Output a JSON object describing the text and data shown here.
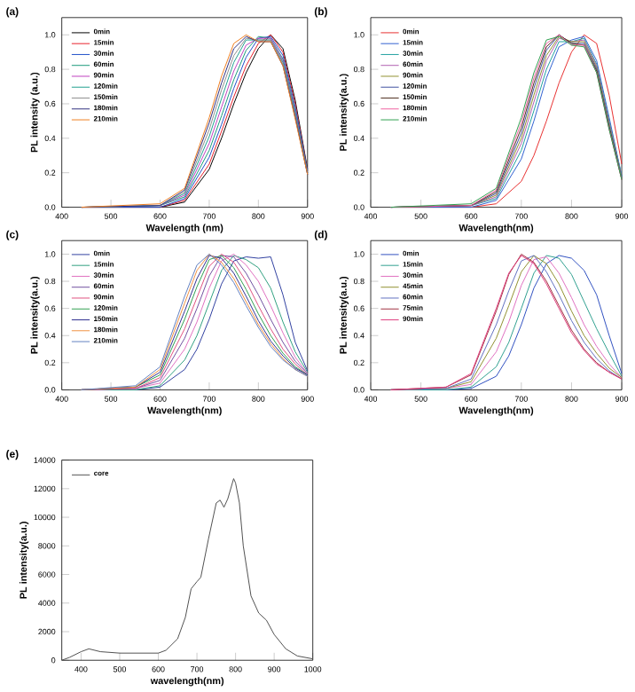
{
  "chart_data": [
    {
      "type": "line",
      "annotations": [
        "(a)"
      ],
      "xlabel": "Wavelength (nm)",
      "ylabel": "PL intensity (a.u.)",
      "legend": "top left",
      "xlim": [
        400,
        900
      ],
      "ylim": [
        0,
        1.1
      ],
      "xticks": [
        400,
        500,
        600,
        700,
        800,
        900
      ],
      "yticks": [
        {
          "value": 0,
          "label": "0.0"
        },
        {
          "value": 0.2,
          "label": "0.2"
        },
        {
          "value": 0.4,
          "label": "0.4"
        },
        {
          "value": 0.6,
          "label": "0.6"
        },
        {
          "value": 0.8,
          "label": "0.8"
        },
        {
          "value": 1.0,
          "label": "1.0"
        }
      ],
      "x": [
        440,
        600,
        650,
        700,
        725,
        750,
        775,
        800,
        825,
        850,
        875,
        900
      ],
      "series": [
        {
          "name": "0min",
          "color": "#000000",
          "values": [
            0,
            0,
            0.03,
            0.22,
            0.4,
            0.6,
            0.78,
            0.92,
            1.0,
            0.92,
            0.62,
            0.22
          ]
        },
        {
          "name": "15min",
          "color": "#e8202a",
          "values": [
            0,
            0,
            0.04,
            0.25,
            0.44,
            0.64,
            0.82,
            0.95,
            1.0,
            0.9,
            0.6,
            0.21
          ]
        },
        {
          "name": "30min",
          "color": "#1f4fc8",
          "values": [
            0,
            0,
            0.05,
            0.29,
            0.48,
            0.69,
            0.87,
            0.98,
            0.99,
            0.88,
            0.58,
            0.21
          ]
        },
        {
          "name": "60min",
          "color": "#1a9a7a",
          "values": [
            0,
            0.01,
            0.06,
            0.33,
            0.53,
            0.74,
            0.91,
            0.99,
            0.98,
            0.86,
            0.56,
            0.2
          ]
        },
        {
          "name": "90min",
          "color": "#c040c0",
          "values": [
            0,
            0.01,
            0.07,
            0.37,
            0.58,
            0.79,
            0.94,
            0.98,
            0.98,
            0.85,
            0.55,
            0.2
          ]
        },
        {
          "name": "120min",
          "color": "#20a090",
          "values": [
            0,
            0.01,
            0.08,
            0.41,
            0.63,
            0.84,
            0.97,
            0.97,
            0.97,
            0.84,
            0.54,
            0.2
          ]
        },
        {
          "name": "150min",
          "color": "#909090",
          "values": [
            0,
            0.01,
            0.09,
            0.45,
            0.68,
            0.88,
            0.98,
            0.97,
            0.97,
            0.83,
            0.53,
            0.19
          ]
        },
        {
          "name": "180min",
          "color": "#303080",
          "values": [
            0,
            0.01,
            0.1,
            0.49,
            0.72,
            0.92,
            0.99,
            0.96,
            0.96,
            0.82,
            0.52,
            0.19
          ]
        },
        {
          "name": "210min",
          "color": "#f08020",
          "values": [
            0,
            0.02,
            0.11,
            0.52,
            0.76,
            0.95,
            1.0,
            0.96,
            0.96,
            0.82,
            0.51,
            0.19
          ]
        }
      ]
    },
    {
      "type": "line",
      "annotations": [
        "(b)"
      ],
      "xlabel": "Wavelength(nm)",
      "ylabel": "PL intensity(a.u.)",
      "legend": "top left",
      "xlim": [
        400,
        900
      ],
      "ylim": [
        0,
        1.1
      ],
      "xticks": [
        400,
        500,
        600,
        700,
        800,
        900
      ],
      "yticks": [
        {
          "value": 0,
          "label": "0.0"
        },
        {
          "value": 0.2,
          "label": "0.2"
        },
        {
          "value": 0.4,
          "label": "0.4"
        },
        {
          "value": 0.6,
          "label": "0.6"
        },
        {
          "value": 0.8,
          "label": "0.8"
        },
        {
          "value": 1.0,
          "label": "1.0"
        }
      ],
      "x": [
        440,
        600,
        650,
        700,
        725,
        750,
        775,
        800,
        825,
        850,
        875,
        900
      ],
      "series": [
        {
          "name": "0min",
          "color": "#e83030",
          "values": [
            0,
            0,
            0.02,
            0.15,
            0.3,
            0.5,
            0.72,
            0.9,
            1.0,
            0.95,
            0.65,
            0.25
          ]
        },
        {
          "name": "15min",
          "color": "#3060d0",
          "values": [
            0,
            0,
            0.04,
            0.28,
            0.5,
            0.75,
            0.93,
            0.97,
            0.99,
            0.85,
            0.52,
            0.18
          ]
        },
        {
          "name": "30min",
          "color": "#20a0a0",
          "values": [
            0,
            0.01,
            0.05,
            0.33,
            0.56,
            0.8,
            0.96,
            0.96,
            0.98,
            0.83,
            0.5,
            0.18
          ]
        },
        {
          "name": "60min",
          "color": "#b060b0",
          "values": [
            0,
            0.01,
            0.06,
            0.37,
            0.61,
            0.85,
            0.98,
            0.96,
            0.97,
            0.82,
            0.49,
            0.17
          ]
        },
        {
          "name": "90min",
          "color": "#909030",
          "values": [
            0,
            0.01,
            0.07,
            0.4,
            0.65,
            0.88,
            0.99,
            0.96,
            0.96,
            0.81,
            0.48,
            0.17
          ]
        },
        {
          "name": "120min",
          "color": "#4050a0",
          "values": [
            0,
            0.01,
            0.08,
            0.43,
            0.69,
            0.91,
            1.0,
            0.95,
            0.95,
            0.8,
            0.47,
            0.17
          ]
        },
        {
          "name": "150min",
          "color": "#503020",
          "values": [
            0,
            0.01,
            0.09,
            0.46,
            0.72,
            0.93,
            1.0,
            0.95,
            0.94,
            0.79,
            0.46,
            0.16
          ]
        },
        {
          "name": "180min",
          "color": "#f060a0",
          "values": [
            0,
            0.01,
            0.1,
            0.49,
            0.75,
            0.95,
            1.0,
            0.94,
            0.94,
            0.78,
            0.45,
            0.16
          ]
        },
        {
          "name": "210min",
          "color": "#30a050",
          "values": [
            0,
            0.02,
            0.11,
            0.52,
            0.78,
            0.97,
            0.99,
            0.94,
            0.93,
            0.78,
            0.45,
            0.16
          ]
        }
      ]
    },
    {
      "type": "line",
      "annotations": [
        "(c)"
      ],
      "xlabel": "Wavelength(nm)",
      "ylabel": "PL intensity(a.u.)",
      "legend": "top left",
      "xlim": [
        400,
        900
      ],
      "ylim": [
        0,
        1.1
      ],
      "xticks": [
        400,
        500,
        600,
        700,
        800,
        900
      ],
      "yticks": [
        {
          "value": 0,
          "label": "0.0"
        },
        {
          "value": 0.2,
          "label": "0.2"
        },
        {
          "value": 0.4,
          "label": "0.4"
        },
        {
          "value": 0.6,
          "label": "0.6"
        },
        {
          "value": 0.8,
          "label": "0.8"
        },
        {
          "value": 1.0,
          "label": "1.0"
        }
      ],
      "x": [
        440,
        550,
        600,
        650,
        675,
        700,
        725,
        750,
        775,
        800,
        825,
        850,
        875,
        900
      ],
      "series": [
        {
          "name": "0min",
          "color": "#3040a0",
          "values": [
            0,
            0,
            0.02,
            0.15,
            0.3,
            0.52,
            0.78,
            0.95,
            0.98,
            0.97,
            0.98,
            0.7,
            0.35,
            0.14
          ]
        },
        {
          "name": "15min",
          "color": "#30a080",
          "values": [
            0,
            0,
            0.03,
            0.22,
            0.4,
            0.64,
            0.88,
            0.99,
            0.96,
            0.9,
            0.75,
            0.5,
            0.28,
            0.13
          ]
        },
        {
          "name": "30min",
          "color": "#e070c0",
          "values": [
            0,
            0.01,
            0.05,
            0.3,
            0.5,
            0.75,
            0.95,
            1.0,
            0.92,
            0.8,
            0.62,
            0.42,
            0.24,
            0.12
          ]
        },
        {
          "name": "60min",
          "color": "#7050a0",
          "values": [
            0,
            0.01,
            0.07,
            0.38,
            0.6,
            0.84,
            0.99,
            0.98,
            0.86,
            0.7,
            0.52,
            0.35,
            0.21,
            0.12
          ]
        },
        {
          "name": "90min",
          "color": "#e05080",
          "values": [
            0,
            0.01,
            0.09,
            0.45,
            0.68,
            0.91,
            1.0,
            0.94,
            0.8,
            0.62,
            0.45,
            0.3,
            0.19,
            0.11
          ]
        },
        {
          "name": "120min",
          "color": "#30a050",
          "values": [
            0,
            0.02,
            0.11,
            0.52,
            0.76,
            0.96,
            0.99,
            0.9,
            0.74,
            0.56,
            0.4,
            0.27,
            0.17,
            0.11
          ]
        },
        {
          "name": "150min",
          "color": "#303090",
          "values": [
            0,
            0.02,
            0.13,
            0.58,
            0.82,
            0.99,
            0.97,
            0.86,
            0.69,
            0.51,
            0.36,
            0.25,
            0.16,
            0.11
          ]
        },
        {
          "name": "180min",
          "color": "#f09040",
          "values": [
            0,
            0.02,
            0.15,
            0.64,
            0.88,
            1.0,
            0.94,
            0.82,
            0.65,
            0.48,
            0.34,
            0.23,
            0.15,
            0.1
          ]
        },
        {
          "name": "210min",
          "color": "#6080c0",
          "values": [
            0,
            0.03,
            0.17,
            0.69,
            0.92,
            1.0,
            0.92,
            0.79,
            0.62,
            0.46,
            0.32,
            0.22,
            0.15,
            0.1
          ]
        }
      ]
    },
    {
      "type": "line",
      "annotations": [
        "(d)"
      ],
      "xlabel": "Wavelength(nm)",
      "ylabel": "PL intensity(a.u.)",
      "legend": "top left",
      "xlim": [
        400,
        900
      ],
      "ylim": [
        0,
        1.1
      ],
      "xticks": [
        400,
        500,
        600,
        700,
        800,
        900
      ],
      "yticks": [
        {
          "value": 0,
          "label": "0.0"
        },
        {
          "value": 0.2,
          "label": "0.2"
        },
        {
          "value": 0.4,
          "label": "0.4"
        },
        {
          "value": 0.6,
          "label": "0.6"
        },
        {
          "value": 0.8,
          "label": "0.8"
        },
        {
          "value": 1.0,
          "label": "1.0"
        }
      ],
      "x": [
        440,
        550,
        600,
        650,
        675,
        700,
        725,
        750,
        775,
        800,
        825,
        850,
        875,
        900
      ],
      "series": [
        {
          "name": "0min",
          "color": "#3050c0",
          "values": [
            0,
            0,
            0.01,
            0.1,
            0.25,
            0.48,
            0.75,
            0.93,
            0.99,
            0.97,
            0.88,
            0.7,
            0.4,
            0.12
          ]
        },
        {
          "name": "15min",
          "color": "#30a090",
          "values": [
            0,
            0,
            0.02,
            0.17,
            0.35,
            0.6,
            0.86,
            0.99,
            0.97,
            0.85,
            0.65,
            0.45,
            0.27,
            0.1
          ]
        },
        {
          "name": "30min",
          "color": "#e070c0",
          "values": [
            0,
            0.01,
            0.04,
            0.28,
            0.5,
            0.77,
            0.96,
            0.98,
            0.86,
            0.68,
            0.48,
            0.32,
            0.19,
            0.09
          ]
        },
        {
          "name": "45min",
          "color": "#909030",
          "values": [
            0,
            0.01,
            0.06,
            0.38,
            0.62,
            0.87,
            0.99,
            0.93,
            0.78,
            0.58,
            0.4,
            0.27,
            0.16,
            0.09
          ]
        },
        {
          "name": "60min",
          "color": "#6070c0",
          "values": [
            0,
            0.01,
            0.08,
            0.48,
            0.73,
            0.95,
            0.99,
            0.87,
            0.7,
            0.51,
            0.35,
            0.23,
            0.14,
            0.08
          ]
        },
        {
          "name": "75min",
          "color": "#a03040",
          "values": [
            0,
            0.02,
            0.11,
            0.58,
            0.85,
            1.0,
            0.94,
            0.8,
            0.62,
            0.44,
            0.3,
            0.2,
            0.13,
            0.08
          ]
        },
        {
          "name": "90min",
          "color": "#e04080",
          "values": [
            0,
            0.02,
            0.12,
            0.6,
            0.86,
            0.99,
            0.93,
            0.78,
            0.6,
            0.42,
            0.29,
            0.19,
            0.13,
            0.08
          ]
        }
      ]
    },
    {
      "type": "line",
      "annotations": [
        "(e)"
      ],
      "xlabel": "wavelength(nm)",
      "ylabel": "PL intensity(a.u.)",
      "legend": "top left",
      "xlim": [
        350,
        1000
      ],
      "ylim": [
        0,
        14000
      ],
      "xticks": [
        400,
        500,
        600,
        700,
        800,
        900,
        1000
      ],
      "yticks": [
        0,
        2000,
        4000,
        6000,
        8000,
        10000,
        12000,
        14000
      ],
      "x": [
        350,
        370,
        400,
        420,
        450,
        500,
        550,
        600,
        620,
        650,
        670,
        685,
        700,
        710,
        730,
        750,
        760,
        770,
        780,
        795,
        800,
        810,
        820,
        840,
        860,
        880,
        900,
        930,
        960,
        1000
      ],
      "series": [
        {
          "name": "core",
          "color": "#505050",
          "values": [
            0,
            200,
            600,
            800,
            600,
            500,
            500,
            500,
            700,
            1500,
            3000,
            5000,
            5500,
            5800,
            8500,
            11000,
            11200,
            10700,
            11300,
            12700,
            12400,
            11000,
            8000,
            4500,
            3300,
            2800,
            1800,
            800,
            300,
            100
          ]
        }
      ]
    }
  ]
}
